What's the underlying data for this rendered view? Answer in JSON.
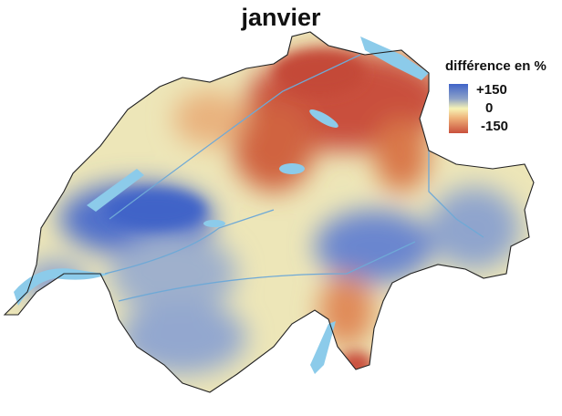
{
  "title": "janvier",
  "legend": {
    "title": "différence en %",
    "max_label": "+150",
    "mid_label": "0",
    "min_label": "-150",
    "colors": {
      "high": "#3f63c8",
      "mid": "#f7f3b5",
      "low": "#c9503c"
    }
  },
  "colors": {
    "lakes": "#8ccbea",
    "border": "#222222",
    "base": "#ede6b8"
  }
}
